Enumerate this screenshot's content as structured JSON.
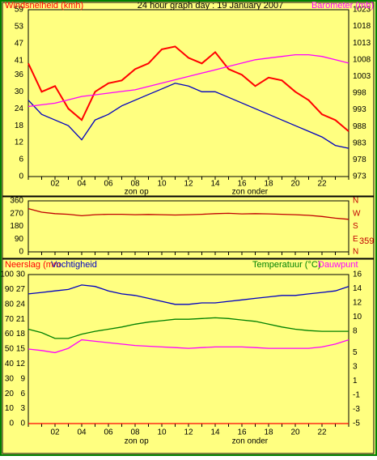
{
  "chart_data": [
    {
      "type": "line",
      "title": "24 hour graph day : 19 January 2007",
      "ylabel": "Windsnelheid (kmh)",
      "y2label": "Barometer (mb)",
      "x": [
        0,
        1,
        2,
        3,
        4,
        5,
        6,
        7,
        8,
        9,
        10,
        11,
        12,
        13,
        14,
        15,
        16,
        17,
        18,
        19,
        20,
        21,
        22,
        23,
        24
      ],
      "xlim": [
        0,
        24
      ],
      "xticks": [
        {
          "value": 2,
          "label": "02"
        },
        {
          "value": 4,
          "label": "04"
        },
        {
          "value": 6,
          "label": "06"
        },
        {
          "value": 8,
          "label": "08"
        },
        10,
        12,
        14,
        16,
        18,
        20,
        22
      ],
      "ylim": [
        0,
        59
      ],
      "yticks": [
        0,
        6,
        12,
        18,
        24,
        30,
        36,
        41,
        47,
        53,
        59
      ],
      "y2lim": [
        973,
        1023
      ],
      "y2ticks": [
        973,
        978,
        983,
        988,
        993,
        998,
        1003,
        1008,
        1013,
        1018,
        1023
      ],
      "annotations": [
        {
          "text": "zon op",
          "x": 8.1
        },
        {
          "text": "zon onder",
          "x": 16.6
        }
      ],
      "series": [
        {
          "color": "#ff0000",
          "values": [
            40,
            30,
            32,
            24,
            20,
            30,
            33,
            34,
            38,
            40,
            45,
            46,
            42,
            40,
            44,
            38,
            36,
            32,
            35,
            34,
            30,
            27,
            22,
            20,
            16
          ]
        },
        {
          "color": "#0000c0",
          "values": [
            27,
            22,
            20,
            18,
            13,
            20,
            22,
            25,
            27,
            29,
            31,
            33,
            32,
            30,
            30,
            28,
            26,
            24,
            22,
            20,
            18,
            16,
            14,
            11,
            10
          ]
        },
        {
          "color": "#ff00ff",
          "axis": "y2",
          "values": [
            994,
            994.5,
            995,
            996,
            997,
            997.5,
            998,
            998.5,
            999,
            1000,
            1001,
            1002,
            1003,
            1004,
            1005,
            1006,
            1007,
            1008,
            1008.5,
            1009,
            1009.5,
            1009.5,
            1009,
            1008,
            1007
          ]
        }
      ]
    },
    {
      "type": "line",
      "x": [
        0,
        1,
        2,
        3,
        4,
        5,
        6,
        7,
        8,
        9,
        10,
        11,
        12,
        13,
        14,
        15,
        16,
        17,
        18,
        19,
        20,
        21,
        22,
        23,
        24
      ],
      "xlim": [
        0,
        24
      ],
      "ylim": [
        0,
        360
      ],
      "yticks": [
        0,
        90,
        180,
        270,
        360
      ],
      "y2lim": [
        0,
        360
      ],
      "y2ticks": [
        {
          "value": 360,
          "label": "N"
        },
        {
          "value": 270,
          "label": "W"
        },
        {
          "value": 180,
          "label": "S"
        },
        {
          "value": 90,
          "label": "E"
        },
        {
          "value": 0,
          "label": "N"
        }
      ],
      "current": 359,
      "series": [
        {
          "color": "#c00000",
          "values": [
            305,
            280,
            270,
            265,
            255,
            262,
            265,
            265,
            262,
            264,
            262,
            260,
            262,
            265,
            270,
            272,
            268,
            270,
            268,
            265,
            262,
            258,
            250,
            238,
            230
          ]
        }
      ]
    },
    {
      "type": "line",
      "x": [
        0,
        1,
        2,
        3,
        4,
        5,
        6,
        7,
        8,
        9,
        10,
        11,
        12,
        13,
        14,
        15,
        16,
        17,
        18,
        19,
        20,
        21,
        22,
        23,
        24
      ],
      "xlim": [
        0,
        24
      ],
      "xticks": [
        {
          "value": 2,
          "label": "02"
        },
        {
          "value": 4,
          "label": "04"
        },
        {
          "value": 6,
          "label": "06"
        },
        {
          "value": 8,
          "label": "08"
        },
        10,
        12,
        14,
        16,
        18,
        20,
        22
      ],
      "ylim": [
        0,
        100
      ],
      "yticks": [
        0,
        10,
        20,
        30,
        40,
        50,
        60,
        70,
        80,
        90,
        100
      ],
      "y3lim": [
        0,
        30
      ],
      "y3ticks": [
        0,
        3,
        6,
        9,
        12,
        15,
        18,
        21,
        24,
        27,
        30
      ],
      "y2lim": [
        -5,
        16
      ],
      "y2ticks": [
        -5,
        -3,
        -1,
        1,
        3,
        5,
        8,
        10,
        12,
        14,
        16
      ],
      "annotations": [
        {
          "text": "zon op",
          "x": 8.1
        },
        {
          "text": "zon onder",
          "x": 16.6
        }
      ],
      "series": [
        {
          "name": "Neerslag (mm",
          "color": "#ff0000",
          "axis": "y3",
          "values": [
            0,
            0,
            0,
            0,
            0,
            0,
            0,
            0,
            0,
            0,
            0,
            0,
            0,
            0,
            0,
            0,
            0,
            0,
            0,
            0,
            0,
            0,
            0,
            0,
            0
          ]
        },
        {
          "name": "Vochtigheid",
          "color": "#0000c0",
          "values": [
            87,
            88,
            89,
            90,
            93,
            92,
            89,
            87,
            86,
            84,
            82,
            80,
            80,
            81,
            81,
            82,
            83,
            84,
            85,
            86,
            86,
            87,
            88,
            89,
            92
          ]
        },
        {
          "name": "Temperatuur (°C)",
          "color": "#008000",
          "axis": "y2",
          "values": [
            8.3,
            7.8,
            7.0,
            7.0,
            7.6,
            8.0,
            8.3,
            8.6,
            9.0,
            9.3,
            9.5,
            9.7,
            9.7,
            9.8,
            9.9,
            9.8,
            9.6,
            9.4,
            9.0,
            8.6,
            8.3,
            8.1,
            8.0,
            8.0,
            8.0
          ]
        },
        {
          "name": "Dauwpunt",
          "color": "#ff00ff",
          "axis": "y2",
          "values": [
            5.5,
            5.3,
            5.0,
            5.6,
            6.8,
            6.6,
            6.4,
            6.2,
            6.0,
            5.9,
            5.8,
            5.7,
            5.6,
            5.7,
            5.8,
            5.8,
            5.8,
            5.7,
            5.6,
            5.6,
            5.6,
            5.6,
            5.8,
            6.2,
            6.8
          ]
        }
      ]
    }
  ]
}
